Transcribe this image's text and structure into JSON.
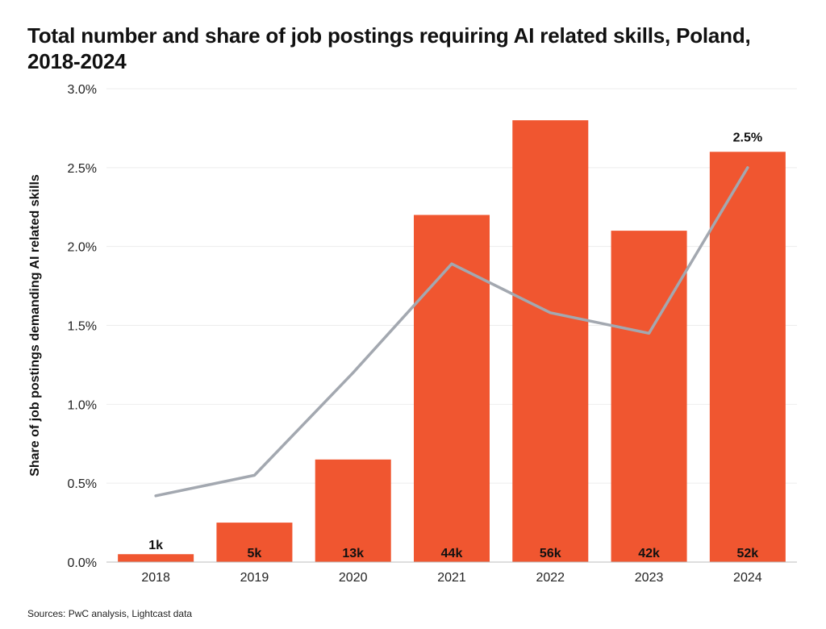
{
  "page": {
    "title": "Total number and share of job postings requiring AI related skills, Poland, 2018-2024",
    "source": "Sources: PwC analysis, Lightcast data"
  },
  "colors": {
    "bar": "#F05630",
    "line": "#A3A8B0",
    "grid": "#EDEDED",
    "label_dark": "#111111"
  },
  "chart_data": {
    "type": "bar",
    "title": "Total number and share of job postings requiring AI related skills, Poland, 2018-2024",
    "xlabel": "",
    "ylabel": "Share of job postings demanding AI related skills",
    "categories": [
      "2018",
      "2019",
      "2020",
      "2021",
      "2022",
      "2023",
      "2024"
    ],
    "bar_series": {
      "values": [
        1,
        5,
        13,
        44,
        56,
        42,
        52
      ],
      "labels": [
        "1k",
        "5k",
        "13k",
        "44k",
        "56k",
        "42k",
        "52k"
      ]
    },
    "line_series": {
      "values": [
        0.42,
        0.55,
        1.2,
        1.89,
        1.58,
        1.45,
        2.5
      ],
      "labels": [
        "",
        "",
        "",
        "",
        "",
        "",
        "2.5%"
      ]
    },
    "y_axis": {
      "min": 0,
      "max": 3.0,
      "ticks": [
        0,
        0.5,
        1.0,
        1.5,
        2.0,
        2.5,
        3.0
      ],
      "tick_labels": [
        "0.0%",
        "0.5%",
        "1.0%",
        "1.5%",
        "2.0%",
        "2.5%",
        "3.0%"
      ]
    },
    "bar_scale_max": 60,
    "grid": true,
    "legend": "none"
  }
}
